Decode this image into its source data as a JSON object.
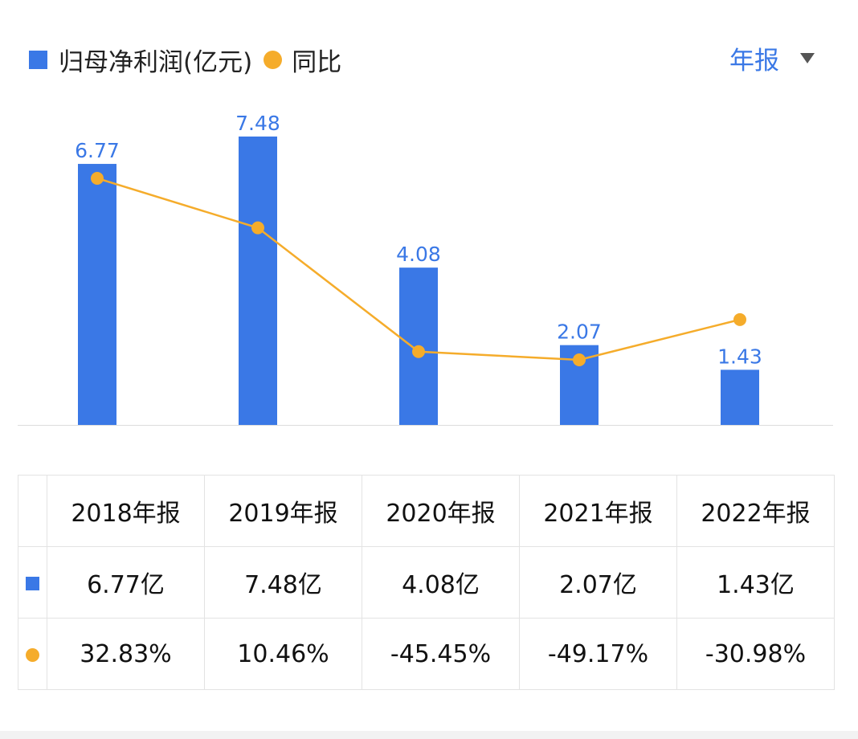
{
  "legend": {
    "bar_label": "归母净利润(亿元)",
    "line_label": "同比"
  },
  "period_selector": {
    "label": "年报"
  },
  "colors": {
    "bar": "#3a78e6",
    "line": "#f5ac2b",
    "up": "#e0443e",
    "down": "#1f9e6e"
  },
  "chart_data": {
    "type": "bar+line",
    "categories": [
      "2018年报",
      "2019年报",
      "2020年报",
      "2021年报",
      "2022年报"
    ],
    "series": [
      {
        "name": "归母净利润(亿元)",
        "type": "bar",
        "values": [
          6.77,
          7.48,
          4.08,
          2.07,
          1.43
        ],
        "labels": [
          "6.77",
          "7.48",
          "4.08",
          "2.07",
          "1.43"
        ]
      },
      {
        "name": "同比",
        "type": "line",
        "unit": "%",
        "values": [
          32.83,
          10.46,
          -45.45,
          -49.17,
          -30.98
        ]
      }
    ],
    "grid": false,
    "legend_position": "top-left"
  },
  "table": {
    "headers": [
      "2018年报",
      "2019年报",
      "2020年报",
      "2021年报",
      "2022年报"
    ],
    "profit": [
      "6.77亿",
      "7.48亿",
      "4.08亿",
      "2.07亿",
      "1.43亿"
    ],
    "yoy": [
      "32.83%",
      "10.46%",
      "-45.45%",
      "-49.17%",
      "-30.98%"
    ]
  }
}
